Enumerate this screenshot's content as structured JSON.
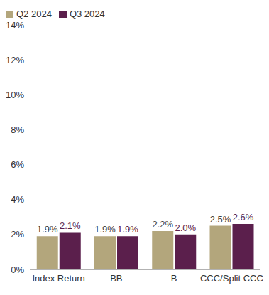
{
  "chart_data": {
    "type": "bar",
    "categories": [
      "Index Return",
      "BB",
      "B",
      "CCC/Split CCC"
    ],
    "series": [
      {
        "name": "Q2 2024",
        "color": "#b3a67c",
        "values": [
          1.9,
          1.9,
          2.2,
          2.5
        ],
        "value_labels": [
          "1.9%",
          "1.9%",
          "2.2%",
          "2.5%"
        ]
      },
      {
        "name": "Q3 2024",
        "color": "#5b1f4c",
        "values": [
          2.1,
          1.9,
          2.0,
          2.6
        ],
        "value_labels": [
          "2.1%",
          "1.9%",
          "2.0%",
          "2.6%"
        ]
      }
    ],
    "ylim": [
      0,
      14
    ],
    "yticks": [
      {
        "value": 0,
        "label": "0%"
      },
      {
        "value": 2,
        "label": "2%"
      },
      {
        "value": 4,
        "label": "4%"
      },
      {
        "value": 6,
        "label": "6%"
      },
      {
        "value": 8,
        "label": "8%"
      },
      {
        "value": 10,
        "label": "10%"
      },
      {
        "value": 12,
        "label": "12%"
      },
      {
        "value": 14,
        "label": "14%"
      }
    ],
    "grid": false,
    "legend": "top-left",
    "data_labels": true
  }
}
